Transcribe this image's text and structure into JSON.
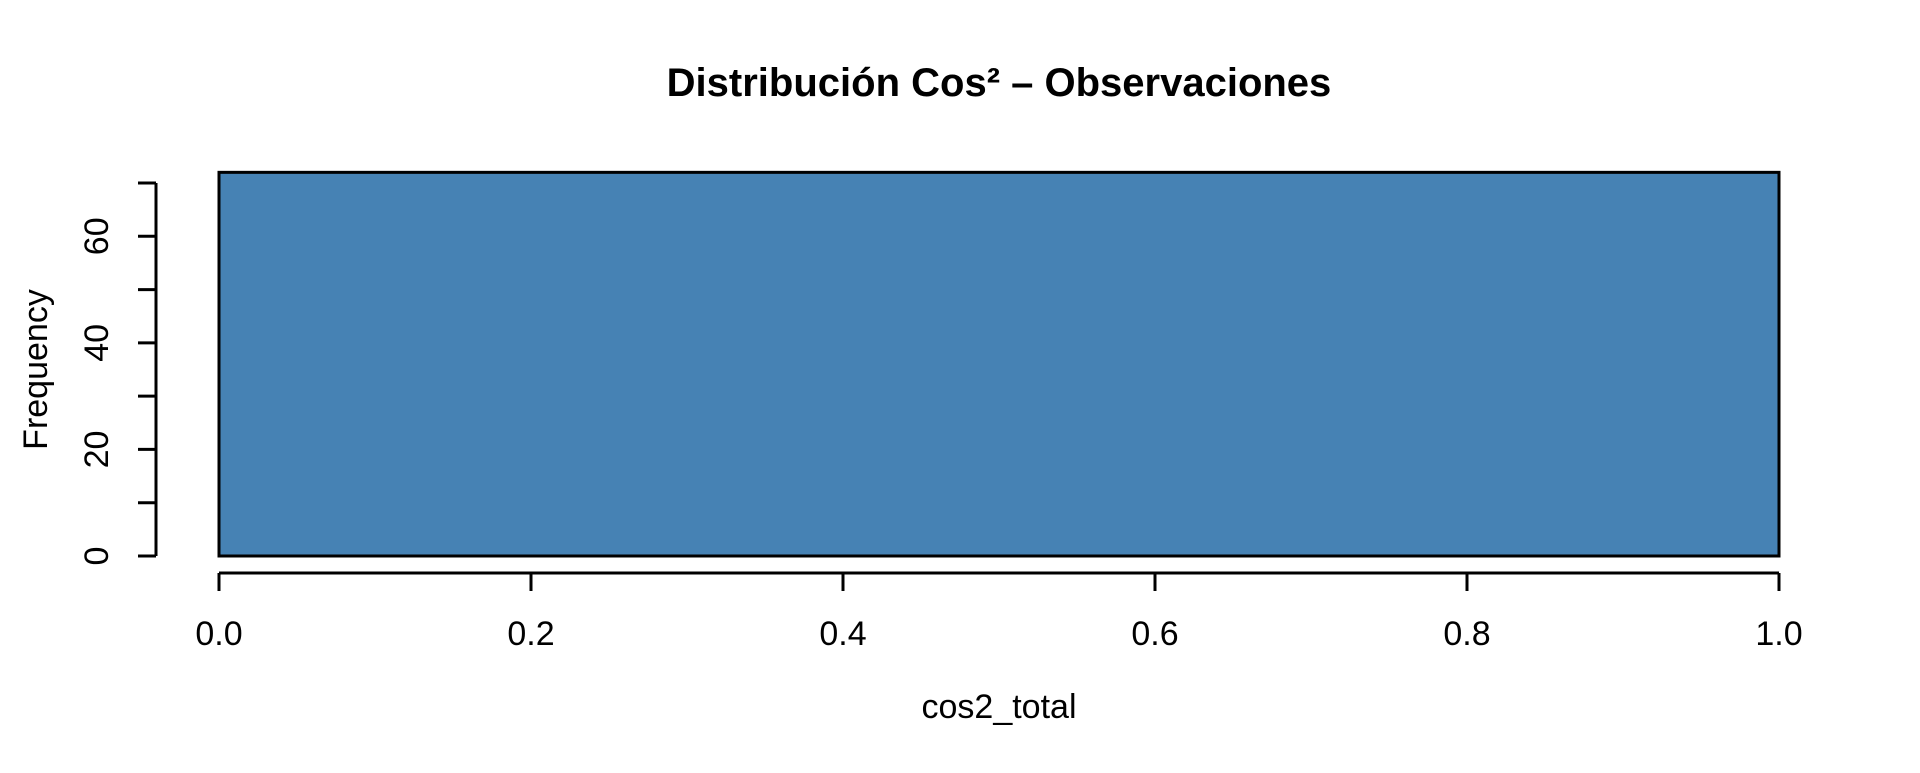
{
  "figure": {
    "background": "#ffffff"
  },
  "chart_data": {
    "type": "bar",
    "subtype": "histogram",
    "title": "Distribución Cos² – Observaciones",
    "xlabel": "cos2_total",
    "ylabel": "Frequency",
    "bins": [
      {
        "x0": 0.0,
        "x1": 1.0,
        "count": 72
      }
    ],
    "xlim": [
      0.0,
      1.0
    ],
    "ylim": [
      0,
      70
    ],
    "x_ticks": [
      {
        "value": 0.0,
        "label": "0.0"
      },
      {
        "value": 0.2,
        "label": "0.2"
      },
      {
        "value": 0.4,
        "label": "0.4"
      },
      {
        "value": 0.6,
        "label": "0.6"
      },
      {
        "value": 0.8,
        "label": "0.8"
      },
      {
        "value": 1.0,
        "label": "1.0"
      }
    ],
    "y_ticks": [
      {
        "value": 0,
        "label": "0"
      },
      {
        "value": 10,
        "label": ""
      },
      {
        "value": 20,
        "label": "20"
      },
      {
        "value": 30,
        "label": ""
      },
      {
        "value": 40,
        "label": "40"
      },
      {
        "value": 50,
        "label": ""
      },
      {
        "value": 60,
        "label": "60"
      },
      {
        "value": 70,
        "label": ""
      }
    ],
    "grid": false,
    "legend": "none",
    "colors": {
      "bar_fill": "#4682B4",
      "bar_stroke": "#000000",
      "axis": "#000000",
      "text": "#000000"
    }
  }
}
